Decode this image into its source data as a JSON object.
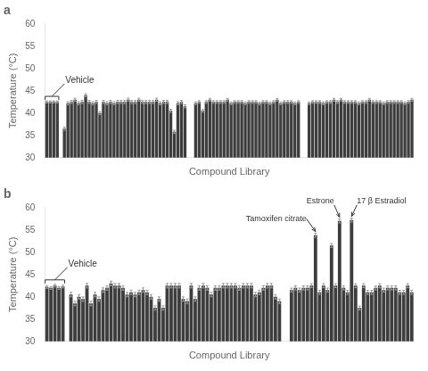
{
  "chart_data": [
    {
      "type": "bar",
      "title": "a",
      "ylabel": "Temperature (°C)",
      "xlabel": "Compound Library",
      "color": "#3d3d3d",
      "ylim": [
        30,
        60
      ],
      "yticks": [
        30,
        35,
        40,
        45,
        50,
        55,
        60
      ],
      "grid": false,
      "tick_labels": "y",
      "groups": [
        {
          "values": [
            42.5,
            42.5,
            42.5,
            42.5
          ],
          "errors": [
            0.25,
            0.25,
            0.25,
            0.25
          ]
        },
        {
          "values": [
            36.5,
            42.2,
            42.5,
            43.0,
            42.2,
            42.5,
            44.0,
            42.5,
            42.2,
            42.5,
            40.0,
            42.5,
            42.2,
            42.5,
            42.2,
            42.5,
            42.5,
            42.5,
            43.0,
            42.5,
            42.5,
            43.0,
            42.5,
            42.5,
            42.5,
            42.5,
            43.0,
            42.2,
            42.5,
            42.5,
            40.5,
            35.8,
            42.2,
            42.5,
            41.5
          ],
          "errors": [
            0.35,
            0.35,
            0.35,
            0.35,
            0.35,
            0.35,
            0.35,
            0.35,
            0.35,
            0.35,
            0.35,
            0.35,
            0.35,
            0.35,
            0.35,
            0.35,
            0.35,
            0.35,
            0.35,
            0.35,
            0.35,
            0.35,
            0.35,
            0.35,
            0.35,
            0.35,
            0.35,
            0.35,
            0.35,
            0.35,
            0.35,
            0.35,
            0.35,
            0.35,
            0.35
          ]
        },
        {
          "values": [
            42.2,
            42.5,
            40.5,
            42.5,
            43.0,
            42.5,
            42.5,
            42.5,
            42.5,
            43.0,
            42.2,
            42.5,
            42.5,
            42.5,
            42.2,
            42.5,
            42.5,
            42.5,
            42.2,
            42.5,
            42.5,
            42.2,
            42.5,
            43.0,
            42.2,
            42.5,
            42.5,
            42.5,
            42.2,
            42.5
          ],
          "errors": [
            0.3,
            0.3,
            0.3,
            0.3,
            0.3,
            0.3,
            0.3,
            0.3,
            0.3,
            0.3,
            0.3,
            0.3,
            0.3,
            0.3,
            0.3,
            0.3,
            0.3,
            0.3,
            0.3,
            0.3,
            0.3,
            0.3,
            0.3,
            0.3,
            0.3,
            0.3,
            0.3,
            0.3,
            0.3,
            0.3
          ]
        },
        {
          "values": [
            42.2,
            42.5,
            42.5,
            42.5,
            42.2,
            42.5,
            42.5,
            43.0,
            42.5,
            43.0,
            42.5,
            42.5,
            42.5,
            42.5,
            42.2,
            42.5,
            42.5,
            43.0,
            42.5,
            42.5,
            42.5,
            42.2,
            42.5,
            42.5,
            42.5,
            42.5,
            42.5,
            42.2,
            42.5,
            43.0
          ],
          "errors": [
            0.3,
            0.3,
            0.3,
            0.3,
            0.3,
            0.3,
            0.3,
            0.3,
            0.3,
            0.3,
            0.3,
            0.3,
            0.3,
            0.3,
            0.3,
            0.3,
            0.3,
            0.3,
            0.3,
            0.3,
            0.3,
            0.3,
            0.3,
            0.3,
            0.3,
            0.3,
            0.3,
            0.3,
            0.3,
            0.3
          ]
        }
      ],
      "annotations": [
        {
          "text": "Vehicle",
          "group": 0
        }
      ]
    },
    {
      "type": "bar",
      "title": "b",
      "ylabel": "Temperature (°C)",
      "xlabel": "Compound Library",
      "color": "#3d3d3d",
      "ylim": [
        30,
        60
      ],
      "yticks": [
        30,
        35,
        40,
        45,
        50,
        55,
        60
      ],
      "grid": false,
      "tick_labels": "y",
      "groups": [
        {
          "values": [
            42.2,
            42.0,
            42.5,
            42.0,
            42.3
          ],
          "errors": [
            0.3,
            0.3,
            0.3,
            0.3,
            0.3
          ]
        },
        {
          "values": [
            40.5,
            38.5,
            40.0,
            39.5,
            42.5,
            38.5,
            40.5,
            39.5,
            41.5,
            42.0,
            43.0,
            42.5,
            42.5,
            42.0,
            40.5,
            41.0,
            40.5,
            41.0,
            41.5,
            41.0,
            40.0,
            37.5,
            39.5,
            37.5,
            42.5,
            42.5,
            42.5,
            42.5,
            39.5,
            39.0,
            42.5,
            39.5,
            42.0,
            42.5,
            42.0,
            40.5,
            42.0,
            42.0,
            42.5,
            42.5,
            42.5,
            42.5,
            42.0,
            42.5,
            42.5,
            42.5,
            40.5,
            41.0,
            42.0,
            42.5,
            42.5,
            40.0,
            39.0
          ],
          "errors": [
            0.5,
            0.5,
            0.5,
            0.5,
            0.5,
            0.5,
            0.5,
            0.5,
            0.5,
            0.5,
            0.5,
            0.5,
            0.5,
            0.5,
            0.5,
            0.5,
            0.5,
            0.5,
            0.5,
            0.5,
            0.5,
            0.5,
            0.5,
            0.5,
            0.5,
            0.5,
            0.5,
            0.5,
            0.5,
            0.5,
            0.5,
            0.5,
            0.5,
            0.5,
            0.5,
            0.5,
            0.5,
            0.5,
            0.5,
            0.5,
            0.5,
            0.5,
            0.5,
            0.5,
            0.5,
            0.5,
            0.5,
            0.5,
            0.5,
            0.5,
            0.5,
            0.5,
            0.5
          ]
        },
        {
          "values": [
            41.5,
            42.0,
            41.5,
            42.0,
            42.0,
            42.5,
            53.8,
            41.0,
            42.5,
            41.5,
            51.5,
            42.5,
            57.0,
            42.0,
            41.0,
            57.2,
            42.5,
            37.5,
            42.5,
            41.0,
            41.0,
            42.0,
            42.5,
            41.5,
            42.0,
            42.0,
            42.0,
            41.0,
            41.0,
            42.5,
            41.0
          ],
          "errors": [
            0.45,
            0.45,
            0.45,
            0.45,
            0.45,
            0.45,
            0.45,
            0.45,
            0.45,
            0.45,
            0.45,
            0.45,
            0.45,
            0.45,
            0.45,
            0.45,
            0.45,
            0.45,
            0.45,
            0.45,
            0.45,
            0.45,
            0.45,
            0.45,
            0.45,
            0.45,
            0.45,
            0.45,
            0.45,
            0.45,
            0.45
          ]
        }
      ],
      "annotations": [
        {
          "text": "Vehicle",
          "group": 0
        },
        {
          "text": "Tamoxifen citrate",
          "group": 2,
          "index": 6
        },
        {
          "text": "Estrone",
          "group": 2,
          "index": 12
        },
        {
          "text": "17 β Estradiol",
          "group": 2,
          "index": 15
        }
      ]
    }
  ]
}
